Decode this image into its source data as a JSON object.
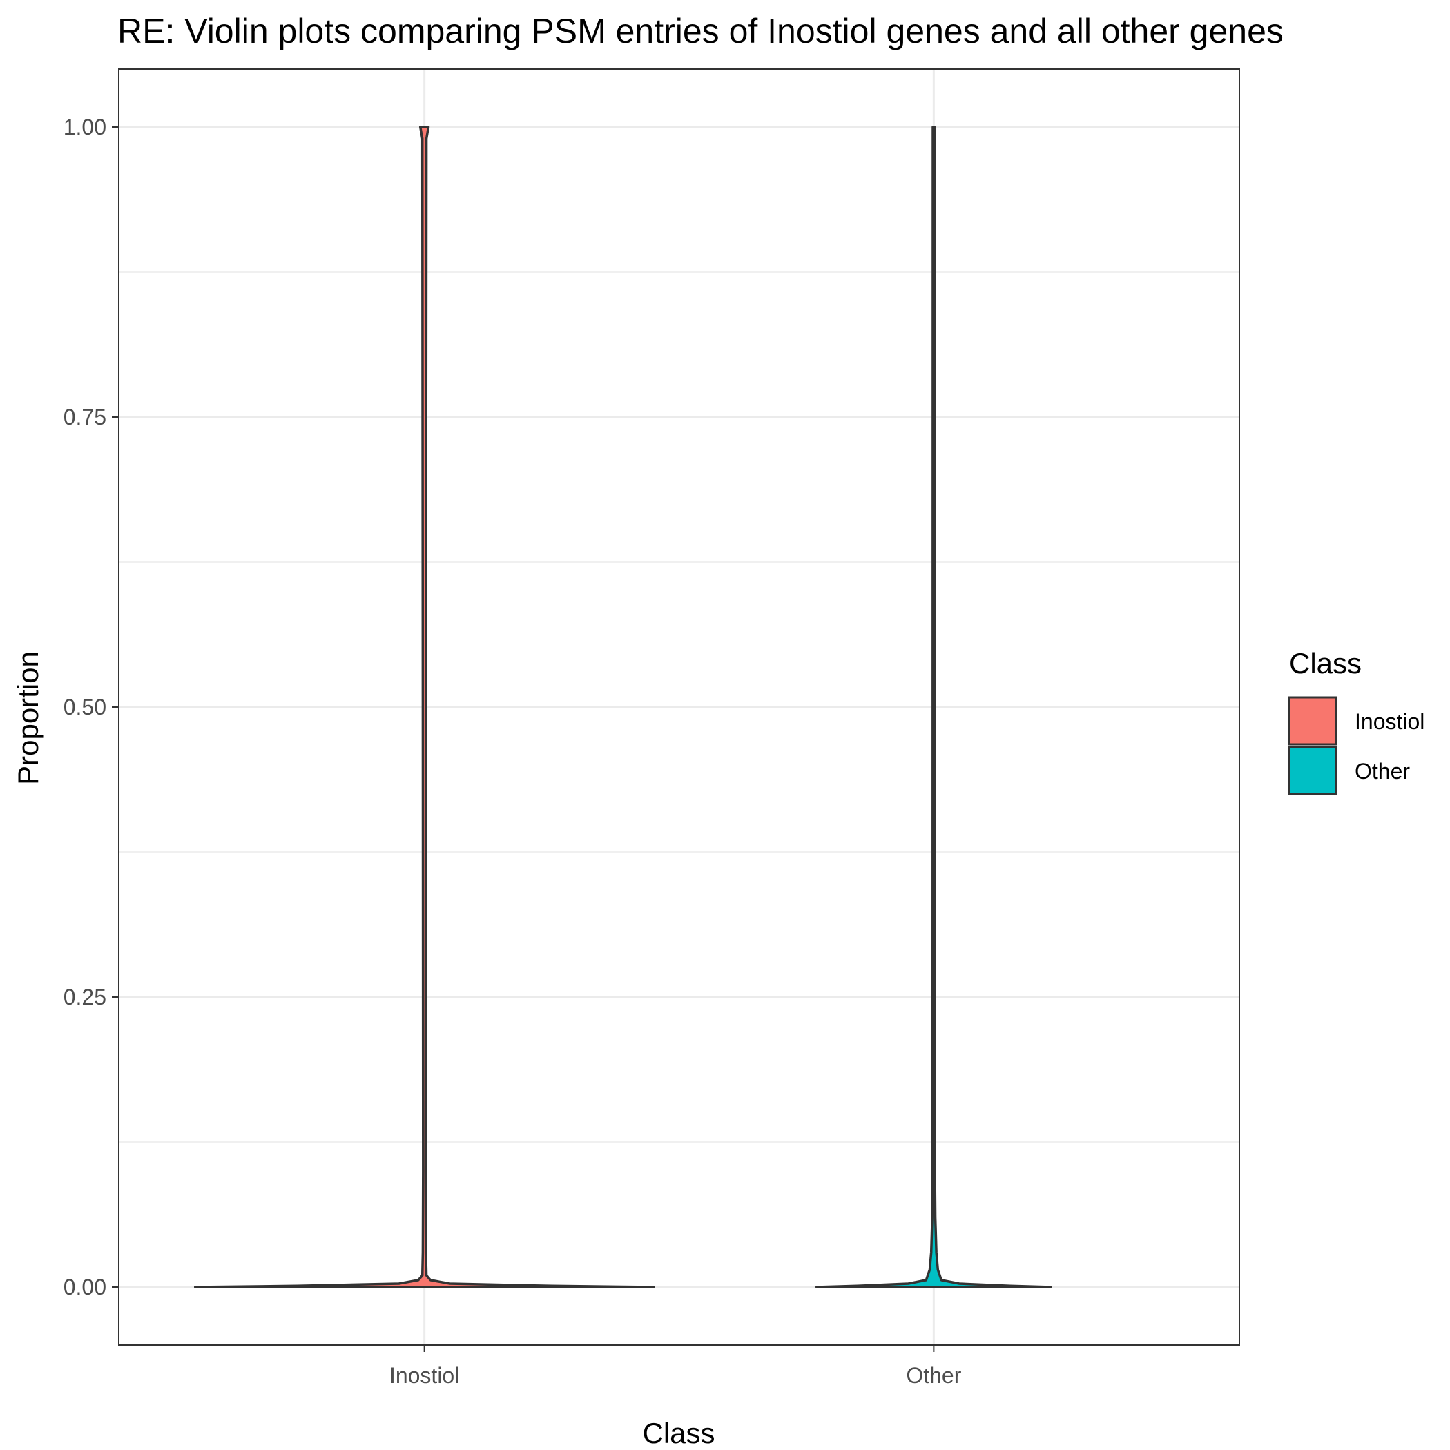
{
  "chart_data": {
    "type": "violin",
    "title": "RE: Violin plots comparing PSM entries of Inostiol genes and all other genes",
    "xlabel": "Class",
    "ylabel": "Proportion",
    "categories": [
      "Inostiol",
      "Other"
    ],
    "ylim": [
      -0.05,
      1.05
    ],
    "yticks": [
      0.0,
      0.25,
      0.5,
      0.75,
      1.0
    ],
    "ytick_labels": [
      "0.00",
      "0.25",
      "0.50",
      "0.75",
      "1.00"
    ],
    "grid": true,
    "legend": {
      "title": "Class",
      "position": "right",
      "entries": [
        "Inostiol",
        "Other"
      ]
    },
    "series": [
      {
        "name": "Inostiol",
        "color": "#F8766D",
        "range": [
          0.0,
          1.0
        ],
        "profile": [
          {
            "y": 0.0,
            "half_width": 0.45
          },
          {
            "y": 0.001,
            "half_width": 0.25
          },
          {
            "y": 0.003,
            "half_width": 0.05
          },
          {
            "y": 0.006,
            "half_width": 0.012
          },
          {
            "y": 0.01,
            "half_width": 0.004
          },
          {
            "y": 0.03,
            "half_width": 0.003
          },
          {
            "y": 0.1,
            "half_width": 0.0025
          },
          {
            "y": 0.5,
            "half_width": 0.003
          },
          {
            "y": 0.97,
            "half_width": 0.004
          },
          {
            "y": 0.99,
            "half_width": 0.004
          },
          {
            "y": 1.0,
            "half_width": 0.008
          }
        ]
      },
      {
        "name": "Other",
        "color": "#00BFC4",
        "range": [
          0.0,
          1.0
        ],
        "profile": [
          {
            "y": 0.0,
            "half_width": 0.23
          },
          {
            "y": 0.001,
            "half_width": 0.15
          },
          {
            "y": 0.003,
            "half_width": 0.05
          },
          {
            "y": 0.006,
            "half_width": 0.015
          },
          {
            "y": 0.015,
            "half_width": 0.008
          },
          {
            "y": 0.03,
            "half_width": 0.005
          },
          {
            "y": 0.06,
            "half_width": 0.003
          },
          {
            "y": 0.1,
            "half_width": 0.0022
          },
          {
            "y": 1.0,
            "half_width": 0.0018
          }
        ]
      }
    ]
  }
}
